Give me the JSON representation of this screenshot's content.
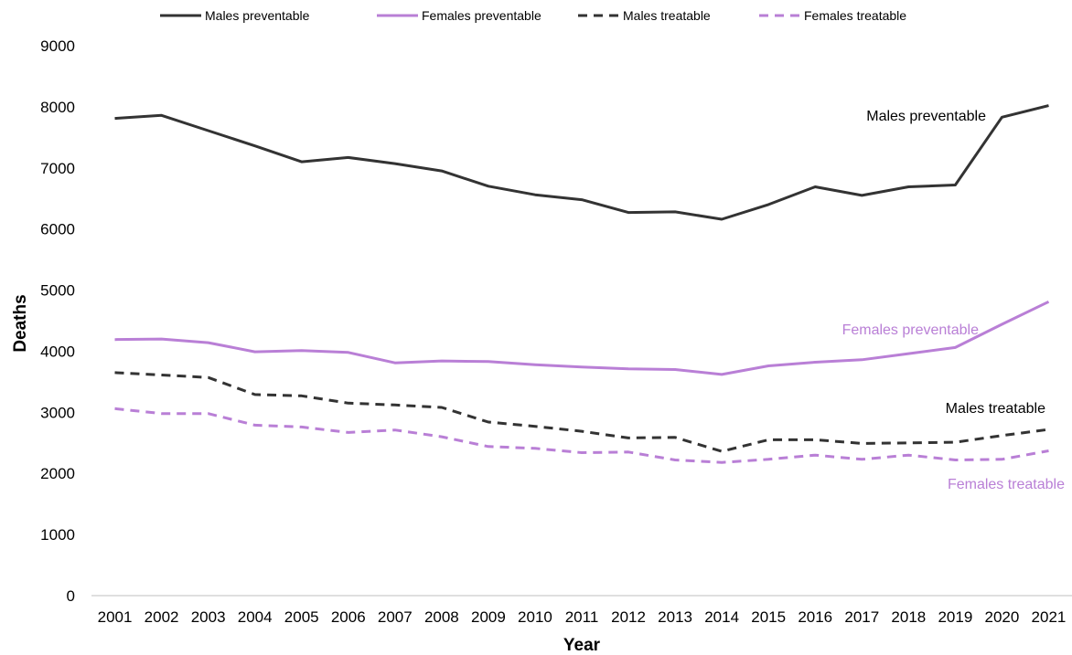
{
  "chart_data": {
    "type": "line",
    "title": "",
    "xlabel": "Year",
    "ylabel": "Deaths",
    "ylim": [
      0,
      9000
    ],
    "yticks": [
      0,
      1000,
      2000,
      3000,
      4000,
      5000,
      6000,
      7000,
      8000,
      9000
    ],
    "grid": false,
    "legend_position": "top",
    "categories": [
      "2001",
      "2002",
      "2003",
      "2004",
      "2005",
      "2006",
      "2007",
      "2008",
      "2009",
      "2010",
      "2011",
      "2012",
      "2013",
      "2014",
      "2015",
      "2016",
      "2017",
      "2018",
      "2019",
      "2020",
      "2021"
    ],
    "series": [
      {
        "name": "Males preventable",
        "color": "#333333",
        "dash": "solid",
        "values": [
          7810,
          7860,
          7610,
          7360,
          7100,
          7170,
          7070,
          6950,
          6700,
          6560,
          6480,
          6270,
          6280,
          6160,
          6400,
          6690,
          6550,
          6690,
          6720,
          7830,
          8020
        ]
      },
      {
        "name": "Females preventable",
        "color": "#B97FD6",
        "dash": "solid",
        "values": [
          4190,
          4200,
          4140,
          3990,
          4010,
          3980,
          3810,
          3840,
          3830,
          3780,
          3740,
          3710,
          3700,
          3620,
          3760,
          3820,
          3860,
          3960,
          4060,
          4440,
          4810
        ]
      },
      {
        "name": "Males treatable",
        "color": "#333333",
        "dash": "dashed",
        "values": [
          3650,
          3610,
          3570,
          3290,
          3270,
          3150,
          3120,
          3080,
          2840,
          2770,
          2690,
          2580,
          2590,
          2360,
          2550,
          2550,
          2490,
          2500,
          2510,
          2620,
          2720
        ]
      },
      {
        "name": "Females treatable",
        "color": "#B97FD6",
        "dash": "dashed",
        "values": [
          3060,
          2980,
          2980,
          2790,
          2760,
          2670,
          2710,
          2600,
          2440,
          2410,
          2340,
          2350,
          2220,
          2180,
          2230,
          2300,
          2230,
          2300,
          2220,
          2230,
          2370
        ]
      }
    ],
    "annotations": [
      {
        "text": "Males preventable",
        "series": 0
      },
      {
        "text": "Females preventable",
        "series": 1
      },
      {
        "text": "Males treatable",
        "series": 2
      },
      {
        "text": "Females treatable",
        "series": 3
      }
    ]
  }
}
